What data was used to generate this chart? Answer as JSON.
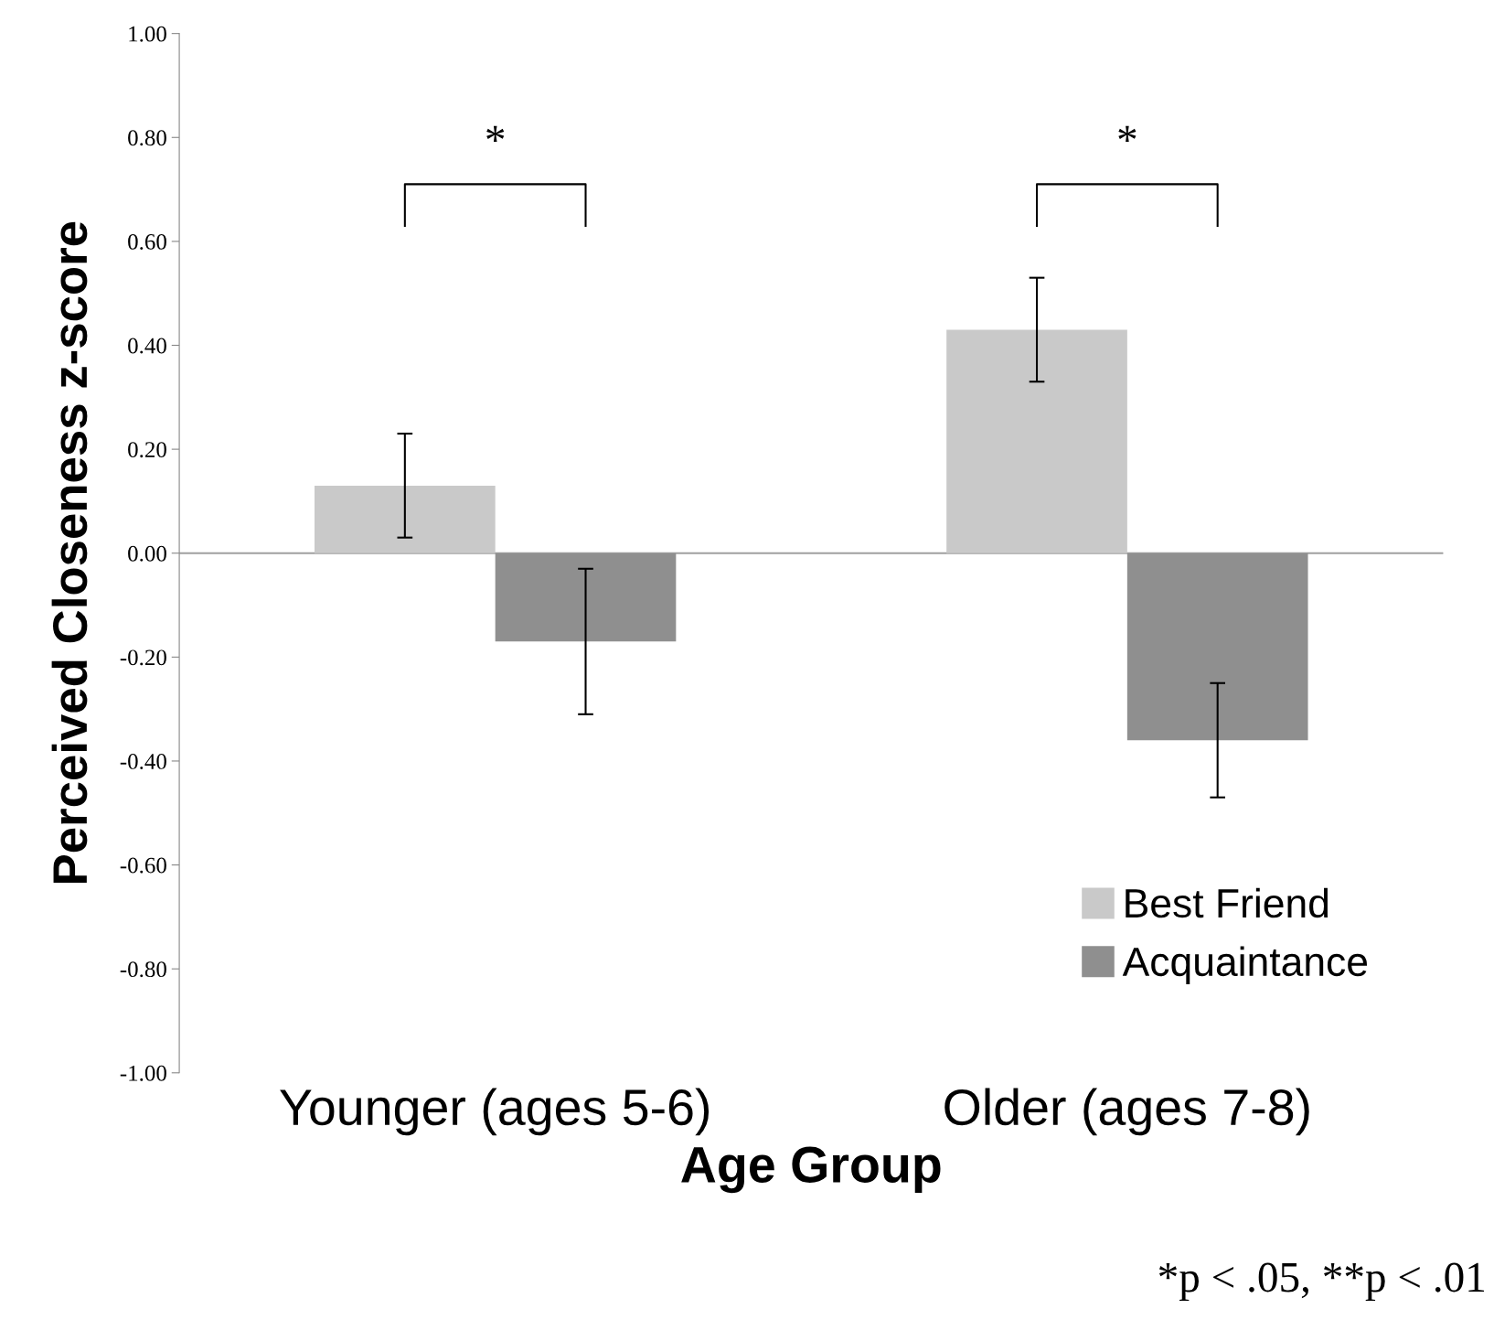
{
  "chart_data": {
    "type": "bar",
    "xlabel": "Age Group",
    "ylabel": "Perceived Closeness z-score",
    "categories": [
      "Younger (ages 5-6)",
      "Older (ages 7-8)"
    ],
    "series": [
      {
        "name": "Best Friend",
        "color": "#c9c9c9",
        "values": [
          0.13,
          0.43
        ],
        "errors": [
          0.1,
          0.1
        ]
      },
      {
        "name": "Acquaintance",
        "color": "#8f8f8f",
        "values": [
          -0.17,
          -0.36
        ],
        "errors": [
          0.14,
          0.11
        ]
      }
    ],
    "ylim": [
      -1,
      1
    ],
    "yticks": [
      {
        "value": -1,
        "label": "-1.00"
      },
      {
        "value": -0.8,
        "label": "-0.80"
      },
      {
        "value": -0.6,
        "label": "-0.60"
      },
      {
        "value": -0.4,
        "label": "-0.40"
      },
      {
        "value": -0.2,
        "label": "-0.20"
      },
      {
        "value": 0,
        "label": "0.00"
      },
      {
        "value": 0.2,
        "label": "0.20"
      },
      {
        "value": 0.4,
        "label": "0.40"
      },
      {
        "value": 0.6,
        "label": "0.60"
      },
      {
        "value": 0.8,
        "label": "0.80"
      },
      {
        "value": 1,
        "label": "1.00"
      }
    ],
    "annotations": [
      "*",
      "*",
      "*p < .05, **p < .01"
    ],
    "legend": "bottom right"
  }
}
